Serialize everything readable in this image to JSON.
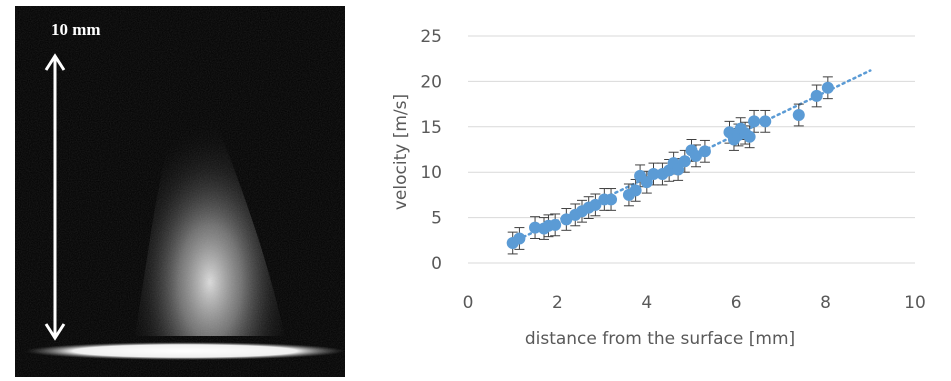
{
  "photo": {
    "scale_label": "10 mm"
  },
  "chart_data": {
    "type": "scatter",
    "xlabel": "distance from the surface [mm]",
    "ylabel": "velocity [m/s]",
    "xlim": [
      0,
      10
    ],
    "ylim": [
      0,
      25
    ],
    "xticks": [
      "0",
      "2",
      "4",
      "6",
      "8",
      "10"
    ],
    "yticks": [
      "0",
      "5",
      "10",
      "15",
      "20",
      "25"
    ],
    "grid": "horizontal",
    "marker_color": "#5B9BD5",
    "errorbar_color": "#404040",
    "trendline": {
      "style": "dotted",
      "x": [
        1.0,
        9.0
      ],
      "y": [
        2.3,
        21.2
      ]
    },
    "points": [
      {
        "x": 1.0,
        "y": 2.2,
        "err": 1.2
      },
      {
        "x": 1.15,
        "y": 2.7,
        "err": 1.2
      },
      {
        "x": 1.5,
        "y": 3.9,
        "err": 1.2
      },
      {
        "x": 1.7,
        "y": 3.8,
        "err": 1.2
      },
      {
        "x": 1.8,
        "y": 4.1,
        "err": 1.2
      },
      {
        "x": 1.95,
        "y": 4.2,
        "err": 1.2
      },
      {
        "x": 2.2,
        "y": 4.8,
        "err": 1.2
      },
      {
        "x": 2.4,
        "y": 5.3,
        "err": 1.2
      },
      {
        "x": 2.55,
        "y": 5.7,
        "err": 1.2
      },
      {
        "x": 2.7,
        "y": 6.1,
        "err": 1.2
      },
      {
        "x": 2.85,
        "y": 6.4,
        "err": 1.2
      },
      {
        "x": 3.05,
        "y": 7.0,
        "err": 1.2
      },
      {
        "x": 3.2,
        "y": 7.0,
        "err": 1.2
      },
      {
        "x": 3.6,
        "y": 7.5,
        "err": 1.2
      },
      {
        "x": 3.75,
        "y": 8.0,
        "err": 1.2
      },
      {
        "x": 3.85,
        "y": 9.6,
        "err": 1.2
      },
      {
        "x": 4.0,
        "y": 8.9,
        "err": 1.2
      },
      {
        "x": 4.15,
        "y": 9.8,
        "err": 1.2
      },
      {
        "x": 4.35,
        "y": 9.8,
        "err": 1.2
      },
      {
        "x": 4.5,
        "y": 10.2,
        "err": 1.2
      },
      {
        "x": 4.6,
        "y": 11.0,
        "err": 1.2
      },
      {
        "x": 4.7,
        "y": 10.3,
        "err": 1.2
      },
      {
        "x": 4.85,
        "y": 11.2,
        "err": 1.2
      },
      {
        "x": 5.0,
        "y": 12.4,
        "err": 1.2
      },
      {
        "x": 5.1,
        "y": 11.8,
        "err": 1.2
      },
      {
        "x": 5.3,
        "y": 12.3,
        "err": 1.2
      },
      {
        "x": 5.85,
        "y": 14.4,
        "err": 1.2
      },
      {
        "x": 5.95,
        "y": 13.6,
        "err": 1.2
      },
      {
        "x": 6.05,
        "y": 14.1,
        "err": 1.2
      },
      {
        "x": 6.1,
        "y": 14.8,
        "err": 1.2
      },
      {
        "x": 6.2,
        "y": 14.3,
        "err": 1.2
      },
      {
        "x": 6.3,
        "y": 13.9,
        "err": 1.2
      },
      {
        "x": 6.4,
        "y": 15.6,
        "err": 1.2
      },
      {
        "x": 6.65,
        "y": 15.6,
        "err": 1.2
      },
      {
        "x": 7.4,
        "y": 16.3,
        "err": 1.2
      },
      {
        "x": 7.8,
        "y": 18.4,
        "err": 1.2
      },
      {
        "x": 8.05,
        "y": 19.3,
        "err": 1.2
      }
    ]
  }
}
